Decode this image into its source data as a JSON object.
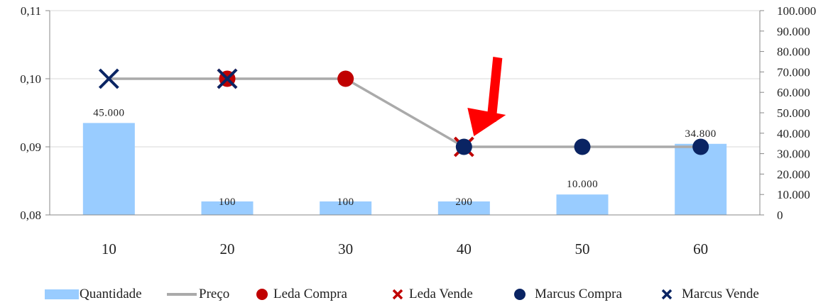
{
  "chart_data": {
    "type": "bar+line+scatter",
    "categories": [
      "10",
      "20",
      "30",
      "40",
      "50",
      "60"
    ],
    "bar_series": {
      "name": "Quantidade",
      "values": [
        45000,
        100,
        100,
        200,
        10000,
        34800
      ],
      "labels": [
        "45.000",
        "100",
        "100",
        "200",
        "10.000",
        "34.800"
      ],
      "color": "#99CCFF"
    },
    "line_series": {
      "name": "Preço",
      "values": [
        0.1,
        0.1,
        0.1,
        0.09,
        0.09,
        0.09
      ],
      "color": "#AAAAAA"
    },
    "marker_series": [
      {
        "name": "Leda Compra",
        "marker": "circle",
        "color": "#C00000",
        "points": [
          {
            "x": "20",
            "y": 0.1
          },
          {
            "x": "30",
            "y": 0.1
          }
        ]
      },
      {
        "name": "Leda Vende",
        "marker": "x",
        "color": "#C00000",
        "points": [
          {
            "x": "20",
            "y": 0.1
          },
          {
            "x": "40",
            "y": 0.09
          }
        ]
      },
      {
        "name": "Marcus Compra",
        "marker": "circle",
        "color": "#0A2463",
        "points": [
          {
            "x": "40",
            "y": 0.09
          },
          {
            "x": "50",
            "y": 0.09
          },
          {
            "x": "60",
            "y": 0.09
          }
        ]
      },
      {
        "name": "Marcus Vende",
        "marker": "x",
        "color": "#0A2463",
        "points": [
          {
            "x": "10",
            "y": 0.1
          },
          {
            "x": "20",
            "y": 0.1
          }
        ]
      }
    ],
    "left_axis": {
      "min": 0.08,
      "max": 0.11,
      "ticks": [
        0.08,
        0.09,
        0.1,
        0.11
      ],
      "tick_labels": [
        "0,08",
        "0,09",
        "0,10",
        "0,11"
      ]
    },
    "right_axis": {
      "min": 0,
      "max": 100000,
      "ticks": [
        0,
        10000,
        20000,
        30000,
        40000,
        50000,
        60000,
        70000,
        80000,
        90000,
        100000
      ],
      "tick_labels": [
        "0",
        "10.000",
        "20.000",
        "30.000",
        "40.000",
        "50.000",
        "60.000",
        "70.000",
        "80.000",
        "90.000",
        "100.000"
      ]
    },
    "annotation": {
      "type": "arrow",
      "target_category": "40",
      "target_value": 0.09,
      "color": "#FF0000"
    },
    "grid": true,
    "legend_position": "bottom"
  },
  "legend": {
    "items": [
      "Quantidade",
      "Preço",
      "Leda Compra",
      "Leda Vende",
      "Marcus Compra",
      "Marcus Vende"
    ]
  }
}
